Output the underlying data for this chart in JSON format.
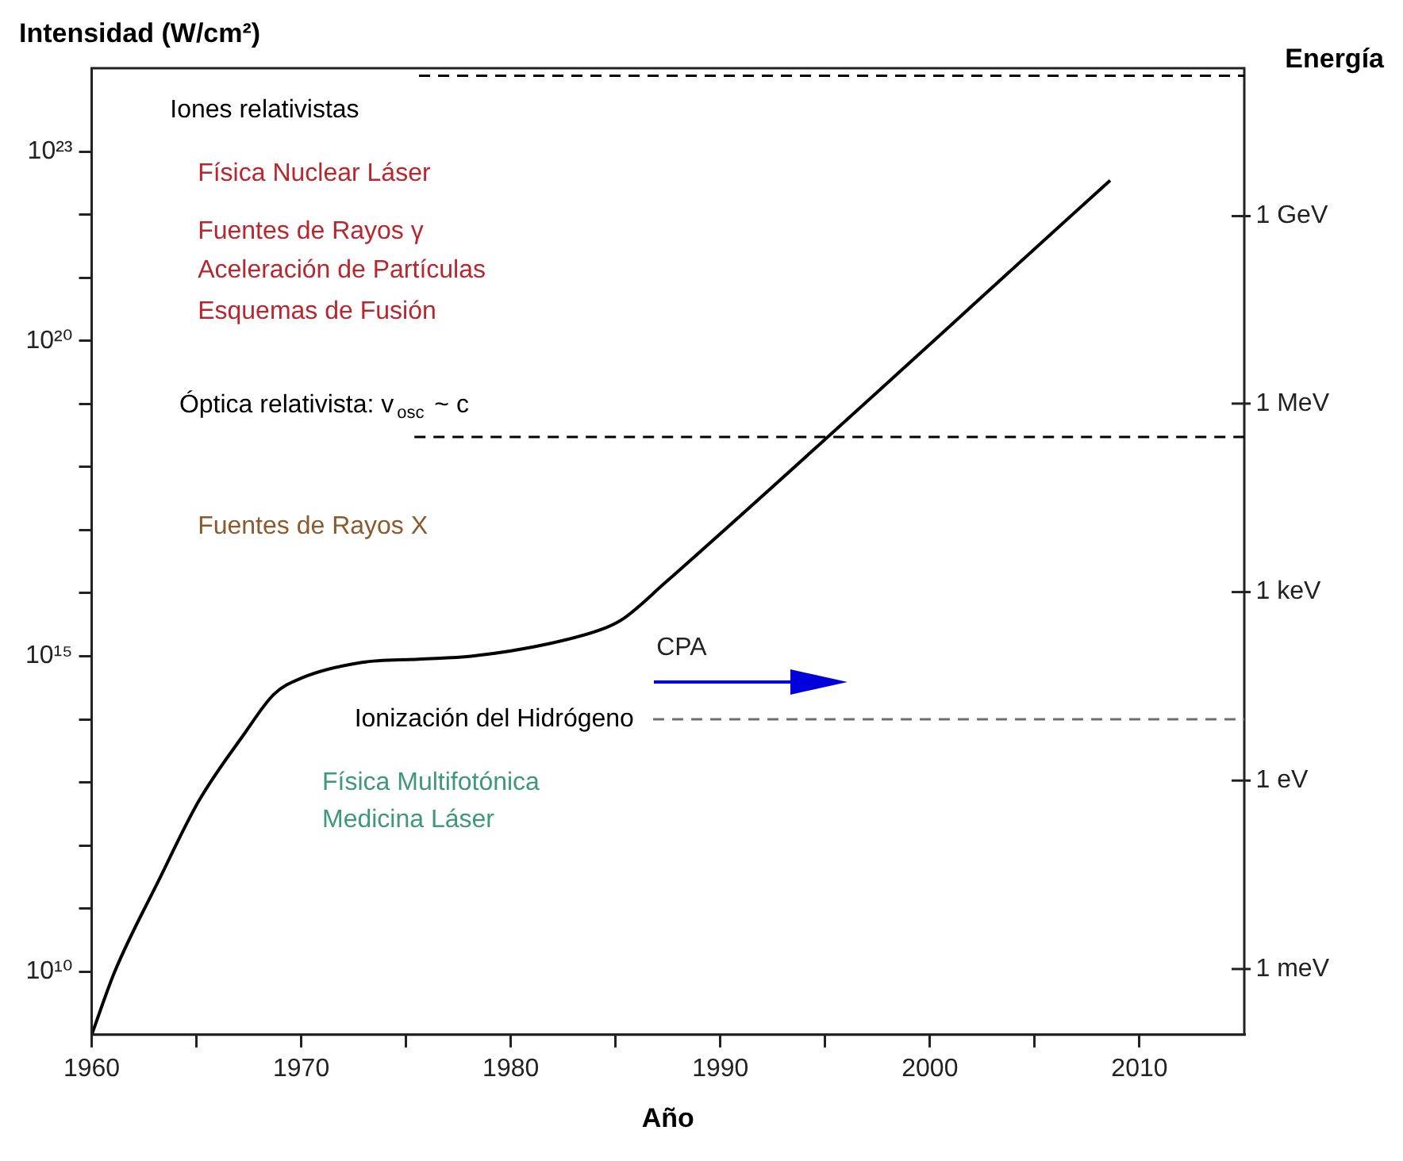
{
  "chart_data": {
    "type": "line",
    "xlabel": "Año",
    "ylabel": "Intensidad (W/cm²)",
    "y2label": "Energía",
    "x": [
      1960,
      1961.1,
      1963.2,
      1965.1,
      1967.3,
      1968.7,
      1970,
      1972.9,
      1975.6,
      1978.1,
      1981.9,
      1984.5,
      1985.4,
      1987.3,
      2008.6
    ],
    "series": [
      {
        "color": "#000000",
        "values": [
          1000000000.0,
          10000000000.0,
          280000000000.0,
          5000000000000.0,
          60000000000000.0,
          250000000000000.0,
          450000000000000.0,
          800000000000000.0,
          900000000000000.0,
          1000000000000000.0,
          1600000000000000.0,
          2800000000000000.0,
          4000000000000000.0,
          1.4e+16,
          3.5e+22
        ]
      }
    ],
    "log": "y",
    "marker": "none",
    "line_style": "solid",
    "grid": false,
    "legend": false,
    "xlim": [
      1960,
      2015
    ],
    "xticks": [
      1960,
      {
        "value": 1965,
        "label": null
      },
      1970,
      {
        "value": 1975,
        "label": null
      },
      1980,
      {
        "value": 1985,
        "label": null
      },
      1990,
      {
        "value": 1995,
        "label": null
      },
      2000,
      {
        "value": 2005,
        "label": null
      },
      2010
    ],
    "ylim": [
      1000000000.0,
      2.1e+24
    ],
    "yticks": [
      {
        "value": 10000000000.0,
        "label": "10¹⁰"
      },
      {
        "value": 100000000000.0,
        "label": null
      },
      {
        "value": 1000000000000.0,
        "label": null
      },
      {
        "value": 10000000000000.0,
        "label": null
      },
      {
        "value": 100000000000000.0,
        "label": null
      },
      {
        "value": 1000000000000000.0,
        "label": "10¹⁵"
      },
      {
        "value": 1e+16,
        "label": null
      },
      {
        "value": 1e+17,
        "label": null
      },
      {
        "value": 1e+18,
        "label": null
      },
      {
        "value": 1e+19,
        "label": null
      },
      {
        "value": 1e+20,
        "label": "10²⁰"
      },
      {
        "value": 1e+21,
        "label": null
      },
      {
        "value": 1e+22,
        "label": null
      },
      {
        "value": 1e+23,
        "label": "10²³"
      }
    ],
    "ref_lines": [
      {
        "axis": "y",
        "value": 1.6e+24,
        "label": "Iones relativistas",
        "color": "#000000",
        "line_style": "dashed"
      },
      {
        "axis": "y",
        "value": 3e+18,
        "label": "Óptica relativista: v$_{osc}$ ~ c",
        "color": "#000000",
        "line_style": "dashed"
      },
      {
        "axis": "y",
        "value": 100000000000000.0,
        "label": "Ionización del Hidrógeno",
        "color": "#6e6e6e",
        "line_style": "dashed"
      }
    ],
    "annotations": [
      "Física Nuclear Láser",
      "Fuentes de Rayos γ",
      "Aceleración de Partículas",
      "Esquemas de Fusión",
      "Fuentes de Rayos X",
      "CPA",
      "Física Multifotónica",
      "Medicina Láser",
      "1 GeV",
      "1 MeV",
      "1 keV",
      "1 eV",
      "1 meV"
    ]
  }
}
